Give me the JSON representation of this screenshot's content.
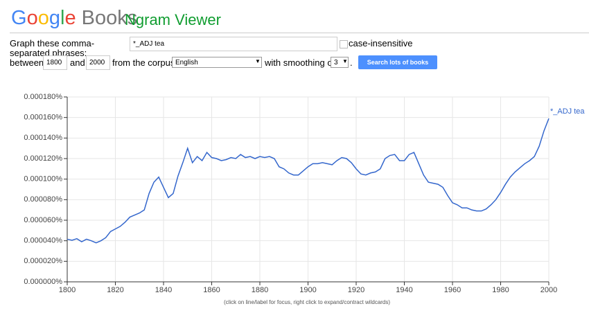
{
  "header": {
    "logo": "Google",
    "product": "Books",
    "title": "Ngram Viewer"
  },
  "form": {
    "label_phrases": "Graph these comma-separated phrases:",
    "query": "*_ADJ tea",
    "case_insensitive": "case-insensitive",
    "between": "between",
    "year_start": "1800",
    "and": "and",
    "year_end": "2000",
    "from_corpus": "from the corpus",
    "corpus": "English",
    "with_smoothing": "with smoothing of",
    "smoothing": "3",
    "period": ".",
    "button": "Search lots of books"
  },
  "chart_data": {
    "type": "line",
    "x": [
      1800,
      1802,
      1804,
      1806,
      1808,
      1810,
      1812,
      1814,
      1816,
      1818,
      1820,
      1822,
      1824,
      1826,
      1828,
      1830,
      1832,
      1834,
      1836,
      1838,
      1840,
      1842,
      1844,
      1846,
      1848,
      1850,
      1852,
      1854,
      1856,
      1858,
      1860,
      1862,
      1864,
      1866,
      1868,
      1870,
      1872,
      1874,
      1876,
      1878,
      1880,
      1882,
      1884,
      1886,
      1888,
      1890,
      1892,
      1894,
      1896,
      1898,
      1900,
      1902,
      1904,
      1906,
      1908,
      1910,
      1912,
      1914,
      1916,
      1918,
      1920,
      1922,
      1924,
      1926,
      1928,
      1930,
      1932,
      1934,
      1936,
      1938,
      1940,
      1942,
      1944,
      1946,
      1948,
      1950,
      1952,
      1954,
      1956,
      1958,
      1960,
      1962,
      1964,
      1966,
      1968,
      1970,
      1972,
      1974,
      1976,
      1978,
      1980,
      1982,
      1984,
      1986,
      1988,
      1990,
      1992,
      1994,
      1996,
      1998,
      2000
    ],
    "series": [
      {
        "name": "*_ADJ tea",
        "color": "#3366cc",
        "values": [
          4.15e-05,
          4.05e-05,
          4.2e-05,
          3.9e-05,
          4.15e-05,
          4e-05,
          3.8e-05,
          4e-05,
          4.3e-05,
          4.9e-05,
          5.15e-05,
          5.4e-05,
          5.8e-05,
          6.3e-05,
          6.5e-05,
          6.7e-05,
          7e-05,
          8.6e-05,
          9.7e-05,
          0.000102,
          9.2e-05,
          8.2e-05,
          8.6e-05,
          0.000103,
          0.000116,
          0.00013,
          0.000116,
          0.000122,
          0.000118,
          0.000126,
          0.000121,
          0.00012,
          0.000118,
          0.000119,
          0.000121,
          0.00012,
          0.000124,
          0.000121,
          0.000122,
          0.00012,
          0.000122,
          0.000121,
          0.000122,
          0.00012,
          0.000112,
          0.00011,
          0.000106,
          0.000104,
          0.000104,
          0.000108,
          0.000112,
          0.000115,
          0.000115,
          0.000116,
          0.000115,
          0.000114,
          0.000118,
          0.000121,
          0.00012,
          0.000116,
          0.00011,
          0.000105,
          0.000104,
          0.000106,
          0.000107,
          0.00011,
          0.00012,
          0.000123,
          0.000124,
          0.000118,
          0.000118,
          0.000124,
          0.000126,
          0.000115,
          0.000104,
          9.7e-05,
          9.6e-05,
          9.5e-05,
          9.2e-05,
          8.4e-05,
          7.7e-05,
          7.5e-05,
          7.2e-05,
          7.2e-05,
          7e-05,
          6.9e-05,
          6.9e-05,
          7.1e-05,
          7.5e-05,
          8e-05,
          8.7e-05,
          9.5e-05,
          0.000102,
          0.000107,
          0.000111,
          0.000115,
          0.000118,
          0.000122,
          0.000132,
          0.000147,
          0.000159
        ]
      }
    ],
    "xlim": [
      1800,
      2000
    ],
    "xticks": [
      1800,
      1820,
      1840,
      1860,
      1880,
      1900,
      1920,
      1940,
      1960,
      1980,
      2000
    ],
    "ylim": [
      0,
      0.00018
    ],
    "yticks": [
      {
        "value": 0,
        "label": "0.000000%"
      },
      {
        "value": 2e-05,
        "label": "0.000020%"
      },
      {
        "value": 4e-05,
        "label": "0.000040%"
      },
      {
        "value": 6e-05,
        "label": "0.000060%"
      },
      {
        "value": 8e-05,
        "label": "0.000080%"
      },
      {
        "value": 0.0001,
        "label": "0.000100%"
      },
      {
        "value": 0.00012,
        "label": "0.000120%"
      },
      {
        "value": 0.00014,
        "label": "0.000140%"
      },
      {
        "value": 0.00016,
        "label": "0.000160%"
      },
      {
        "value": 0.00018,
        "label": "0.000180%"
      }
    ],
    "grid": true,
    "note": "(click on line/label for focus, right click to expand/contract wildcards)"
  }
}
